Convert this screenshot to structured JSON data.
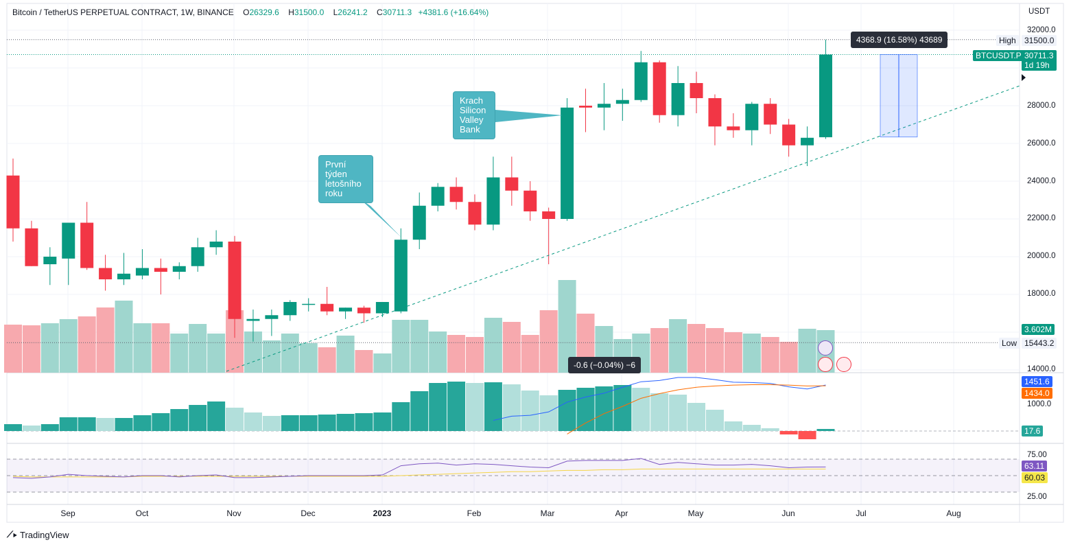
{
  "header": {
    "symbol": "Bitcoin / TetherUS PERPETUAL CONTRACT, 1W, BINANCE",
    "o_label": "O",
    "o": "26329.6",
    "h_label": "H",
    "h": "31500.0",
    "l_label": "L",
    "l": "26241.2",
    "c_label": "C",
    "c": "30711.3",
    "change": "+4381.6 (+16.64%)"
  },
  "price_axis": {
    "currency": "USDT",
    "ticks": [
      "32000.0",
      "28000.0",
      "26000.0",
      "24000.0",
      "22000.0",
      "20000.0",
      "18000.0",
      "14000.0"
    ],
    "high_label": "High",
    "high_value": "31500.0",
    "low_label": "Low",
    "low_value": "15443.2",
    "symbol_tag": "BTCUSDT.P",
    "last_price": "30711.3",
    "countdown": "1d 19h",
    "volume_tag": "3.602M"
  },
  "macd_axis": {
    "tick": "1000.0",
    "blue_value": "1451.6",
    "orange_value": "1434.0",
    "hist_value": "17.6"
  },
  "rsi_axis": {
    "ticks": [
      "75.00",
      "25.00"
    ],
    "rsi_value": "63.11",
    "ma_value": "60.03"
  },
  "time_axis": {
    "months": [
      "Sep",
      "Oct",
      "Nov",
      "Dec",
      "2023",
      "Feb",
      "Mar",
      "Apr",
      "May",
      "Jun",
      "Jul",
      "Aug"
    ]
  },
  "annotations": {
    "callout_first_week": "První týden letošního roku",
    "callout_svb": "Krach Silicon Valley Bank",
    "measure_tooltip": "4368.9 (16.58%) 43689",
    "cursor_tooltip": "-0.6 (−0.04%) −6"
  },
  "branding": {
    "logo": "TradingView"
  },
  "colors": {
    "up": "#089981",
    "down": "#f23645",
    "up_vol": "#9fd6ce",
    "down_vol": "#f7a9ae",
    "macd_line": "#2962ff",
    "signal_line": "#ff6d00",
    "rsi_line": "#7e57c2",
    "rsi_ma": "#f5d547"
  },
  "chart_data": {
    "type": "candlestick",
    "timeframe": "1W",
    "candles": [
      {
        "o": 24300,
        "h": 25200,
        "l": 20800,
        "c": 21500
      },
      {
        "o": 21500,
        "h": 21900,
        "l": 19500,
        "c": 19500
      },
      {
        "o": 19600,
        "h": 20500,
        "l": 18500,
        "c": 20000
      },
      {
        "o": 19900,
        "h": 21800,
        "l": 18500,
        "c": 21800
      },
      {
        "o": 21800,
        "h": 22900,
        "l": 19300,
        "c": 19400
      },
      {
        "o": 19400,
        "h": 20100,
        "l": 18200,
        "c": 18800
      },
      {
        "o": 18800,
        "h": 20200,
        "l": 18500,
        "c": 19100
      },
      {
        "o": 19000,
        "h": 20400,
        "l": 18800,
        "c": 19400
      },
      {
        "o": 19400,
        "h": 19900,
        "l": 18000,
        "c": 19200
      },
      {
        "o": 19200,
        "h": 19700,
        "l": 18800,
        "c": 19500
      },
      {
        "o": 19500,
        "h": 21000,
        "l": 19200,
        "c": 20500
      },
      {
        "o": 20500,
        "h": 21400,
        "l": 20100,
        "c": 20800
      },
      {
        "o": 20800,
        "h": 21100,
        "l": 15700,
        "c": 16700
      },
      {
        "o": 16600,
        "h": 17200,
        "l": 15500,
        "c": 16700
      },
      {
        "o": 16700,
        "h": 17200,
        "l": 15800,
        "c": 16900
      },
      {
        "o": 16900,
        "h": 17700,
        "l": 16600,
        "c": 17600
      },
      {
        "o": 17500,
        "h": 17800,
        "l": 17100,
        "c": 17500
      },
      {
        "o": 17500,
        "h": 18400,
        "l": 16900,
        "c": 17100
      },
      {
        "o": 17100,
        "h": 17300,
        "l": 16700,
        "c": 17300
      },
      {
        "o": 17300,
        "h": 17400,
        "l": 16500,
        "c": 17000
      },
      {
        "o": 17000,
        "h": 17600,
        "l": 16800,
        "c": 17600
      },
      {
        "o": 17100,
        "h": 21500,
        "l": 17000,
        "c": 20900
      },
      {
        "o": 20900,
        "h": 23400,
        "l": 20400,
        "c": 22700
      },
      {
        "o": 22700,
        "h": 23900,
        "l": 22400,
        "c": 23700
      },
      {
        "o": 23700,
        "h": 24200,
        "l": 22500,
        "c": 22900
      },
      {
        "o": 22900,
        "h": 23300,
        "l": 21400,
        "c": 21700
      },
      {
        "o": 21700,
        "h": 25300,
        "l": 21400,
        "c": 24200
      },
      {
        "o": 24200,
        "h": 25300,
        "l": 22700,
        "c": 23500
      },
      {
        "o": 23500,
        "h": 24000,
        "l": 21900,
        "c": 22400
      },
      {
        "o": 22400,
        "h": 22600,
        "l": 19600,
        "c": 22000
      },
      {
        "o": 22000,
        "h": 28400,
        "l": 21900,
        "c": 27900
      },
      {
        "o": 28000,
        "h": 28900,
        "l": 26600,
        "c": 27900
      },
      {
        "o": 27900,
        "h": 29200,
        "l": 26700,
        "c": 28100
      },
      {
        "o": 28100,
        "h": 28900,
        "l": 27200,
        "c": 28300
      },
      {
        "o": 28300,
        "h": 30900,
        "l": 28200,
        "c": 30300
      },
      {
        "o": 30300,
        "h": 30400,
        "l": 27100,
        "c": 27500
      },
      {
        "o": 27500,
        "h": 30100,
        "l": 26900,
        "c": 29200
      },
      {
        "o": 29200,
        "h": 29800,
        "l": 27600,
        "c": 28400
      },
      {
        "o": 28400,
        "h": 28600,
        "l": 25900,
        "c": 26900
      },
      {
        "o": 26900,
        "h": 27600,
        "l": 26300,
        "c": 26700
      },
      {
        "o": 26700,
        "h": 28200,
        "l": 25900,
        "c": 28100
      },
      {
        "o": 28100,
        "h": 28400,
        "l": 26500,
        "c": 27000
      },
      {
        "o": 27000,
        "h": 27300,
        "l": 25300,
        "c": 25900
      },
      {
        "o": 25900,
        "h": 26900,
        "l": 24800,
        "c": 26300
      },
      {
        "o": 26329.6,
        "h": 31500.0,
        "l": 26241.2,
        "c": 30711.3
      }
    ],
    "volume_scale": "relative",
    "volumes": [
      70,
      69,
      72,
      78,
      82,
      95,
      105,
      72,
      72,
      57,
      71,
      57,
      91,
      60,
      47,
      57,
      43,
      37,
      54,
      33,
      28,
      77,
      77,
      60,
      55,
      52,
      80,
      74,
      55,
      91,
      135,
      86,
      68,
      49,
      57,
      65,
      78,
      71,
      65,
      59,
      57,
      52,
      45,
      64,
      62
    ],
    "macd_hist": [
      10,
      8,
      10,
      20,
      20,
      19,
      19,
      23,
      26,
      32,
      38,
      43,
      34,
      27,
      22,
      23,
      23,
      24,
      25,
      26,
      27,
      42,
      58,
      70,
      72,
      70,
      71,
      68,
      59,
      52,
      60,
      63,
      65,
      67,
      63,
      55,
      53,
      41,
      31,
      14,
      9,
      4,
      -5,
      -12,
      3
    ],
    "macd_line": [
      null,
      null,
      null,
      null,
      null,
      null,
      null,
      null,
      null,
      null,
      null,
      null,
      null,
      null,
      null,
      null,
      null,
      null,
      null,
      null,
      null,
      null,
      null,
      null,
      null,
      null,
      620,
      720,
      740,
      820,
      1050,
      1170,
      1260,
      1400,
      1530,
      1560,
      1630,
      1630,
      1580,
      1520,
      1510,
      1490,
      1410,
      1360,
      1451.6
    ],
    "signal_line": [
      null,
      null,
      null,
      null,
      null,
      null,
      null,
      null,
      null,
      null,
      null,
      null,
      null,
      null,
      null,
      null,
      null,
      null,
      null,
      null,
      null,
      null,
      null,
      null,
      null,
      null,
      null,
      null,
      null,
      null,
      300,
      560,
      780,
      950,
      1140,
      1250,
      1340,
      1400,
      1430,
      1450,
      1460,
      1460,
      1450,
      1430,
      1434.0
    ],
    "rsi": [
      47,
      46,
      48,
      52,
      50,
      49,
      48,
      50,
      50,
      48,
      50,
      51,
      47,
      47,
      48,
      49,
      50,
      50,
      50,
      50,
      51,
      65,
      68,
      69,
      66,
      68,
      67,
      65,
      63,
      62,
      72,
      73,
      73,
      73,
      76,
      67,
      70,
      68,
      66,
      66,
      67,
      65,
      62,
      63,
      63.11
    ],
    "rsi_ma": [
      49,
      48,
      48,
      48,
      48,
      48,
      48,
      49,
      49,
      49,
      49,
      49,
      49,
      49,
      49,
      49,
      49,
      49,
      49,
      49,
      49,
      50,
      51,
      52,
      53,
      54,
      55,
      56,
      56,
      57,
      58,
      58,
      59,
      59,
      60,
      60,
      60,
      60,
      60,
      60,
      60,
      60,
      60,
      60,
      60.03
    ],
    "price_ylim": [
      14000,
      32000
    ],
    "rsi_levels": [
      75,
      50,
      25
    ],
    "measure": {
      "from": 26342.4,
      "to": 30711.3
    }
  }
}
